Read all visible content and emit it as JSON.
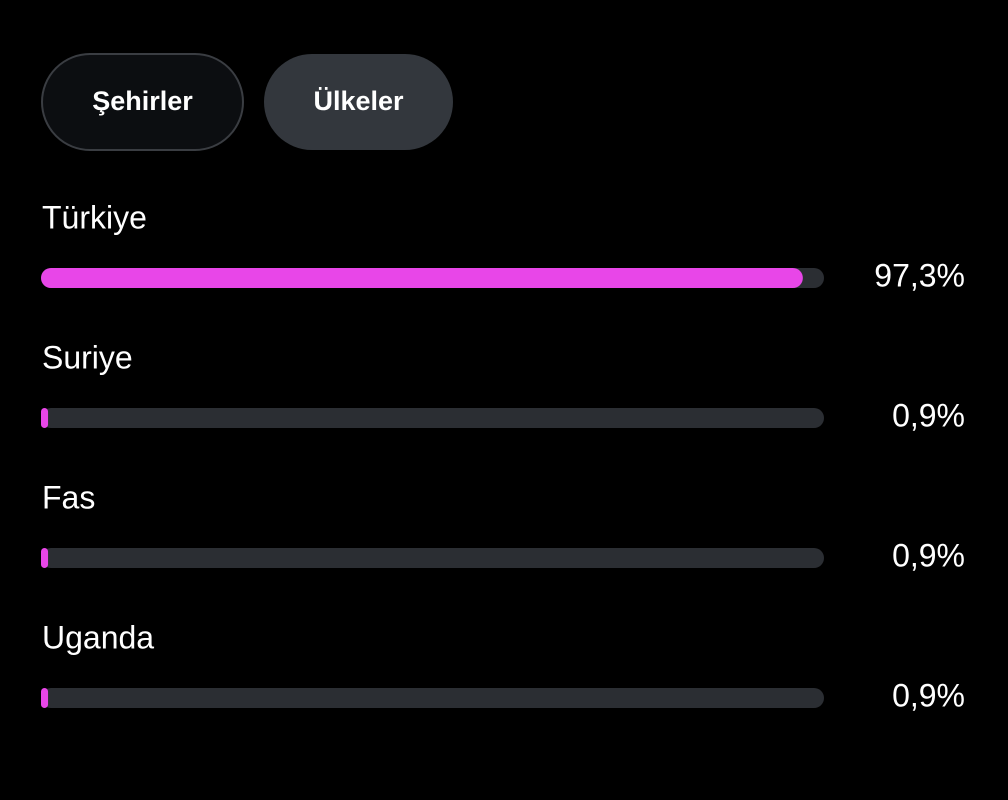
{
  "tabs": [
    "Şehirler",
    "Ülkeler"
  ],
  "chart_data": {
    "type": "bar",
    "orientation": "horizontal",
    "categories": [
      "Türkiye",
      "Suriye",
      "Fas",
      "Uganda"
    ],
    "values": [
      97.3,
      0.9,
      0.9,
      0.9
    ],
    "value_labels": [
      "97,3%",
      "0,9%",
      "0,9%",
      "0,9%"
    ],
    "color": "#e846e8",
    "xlim": [
      0,
      100
    ]
  }
}
